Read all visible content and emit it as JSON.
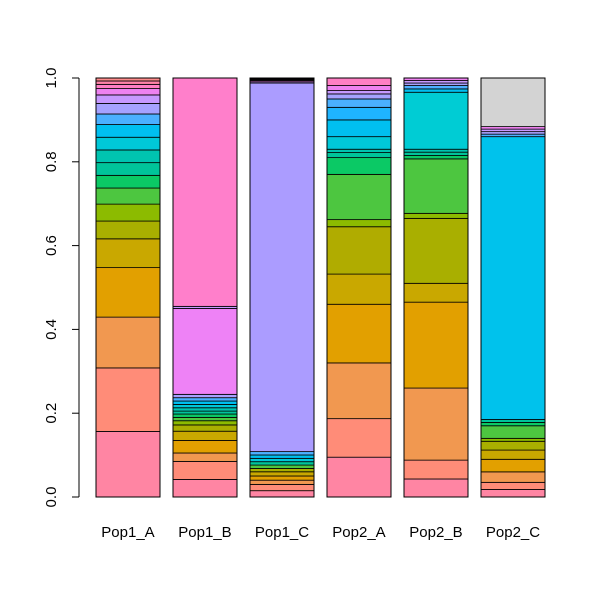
{
  "chart_data": {
    "type": "bar",
    "stacked": true,
    "categories": [
      "Pop1_A",
      "Pop1_B",
      "Pop1_C",
      "Pop2_A",
      "Pop2_B",
      "Pop2_C"
    ],
    "ylim": [
      0,
      1
    ],
    "yticks": [
      "0.0",
      "0.2",
      "0.4",
      "0.6",
      "0.8",
      "1.0"
    ],
    "ytick_values": [
      0,
      0.2,
      0.4,
      0.6,
      0.8,
      1.0
    ],
    "grid": false,
    "bars": [
      {
        "category": "Pop1_A",
        "segments": [
          {
            "value": 0.155,
            "color": "#FF85A3"
          },
          {
            "value": 0.15,
            "color": "#FF8C78"
          },
          {
            "value": 0.12,
            "color": "#F19850"
          },
          {
            "value": 0.117,
            "color": "#E2A000"
          },
          {
            "value": 0.068,
            "color": "#C9A800"
          },
          {
            "value": 0.042,
            "color": "#A9AF00"
          },
          {
            "value": 0.04,
            "color": "#8CBB00"
          },
          {
            "value": 0.038,
            "color": "#4DC640"
          },
          {
            "value": 0.03,
            "color": "#0BC965"
          },
          {
            "value": 0.03,
            "color": "#00C49A"
          },
          {
            "value": 0.03,
            "color": "#00C4B0"
          },
          {
            "value": 0.03,
            "color": "#00C8D8"
          },
          {
            "value": 0.03,
            "color": "#00BFF0"
          },
          {
            "value": 0.025,
            "color": "#4BB0FF"
          },
          {
            "value": 0.025,
            "color": "#A6A2FF"
          },
          {
            "value": 0.02,
            "color": "#C799FF"
          },
          {
            "value": 0.015,
            "color": "#EE82F0"
          },
          {
            "value": 0.01,
            "color": "#FF7FC4"
          },
          {
            "value": 0.008,
            "color": "#FF83A8"
          },
          {
            "value": 0.007,
            "color": "#FF8C8C"
          }
        ]
      },
      {
        "category": "Pop1_B",
        "segments": [
          {
            "value": 0.042,
            "color": "#FF85A3"
          },
          {
            "value": 0.043,
            "color": "#FF8C78"
          },
          {
            "value": 0.02,
            "color": "#F19850"
          },
          {
            "value": 0.03,
            "color": "#E2A000"
          },
          {
            "value": 0.022,
            "color": "#C9A800"
          },
          {
            "value": 0.015,
            "color": "#A9AF00"
          },
          {
            "value": 0.01,
            "color": "#8CBB00"
          },
          {
            "value": 0.008,
            "color": "#4DC640"
          },
          {
            "value": 0.008,
            "color": "#0BC965"
          },
          {
            "value": 0.007,
            "color": "#00C49A"
          },
          {
            "value": 0.008,
            "color": "#00C4B0"
          },
          {
            "value": 0.008,
            "color": "#00C8D8"
          },
          {
            "value": 0.008,
            "color": "#00BFF0"
          },
          {
            "value": 0.008,
            "color": "#4BB0FF"
          },
          {
            "value": 0.008,
            "color": "#A6A2FF"
          },
          {
            "value": 0.205,
            "color": "#EE82F6"
          },
          {
            "value": 0.005,
            "color": "#C799FF"
          },
          {
            "value": 0.545,
            "color": "#FF7FCB"
          }
        ]
      },
      {
        "category": "Pop1_C",
        "segments": [
          {
            "value": 0.015,
            "color": "#FF85A3"
          },
          {
            "value": 0.015,
            "color": "#FF8C78"
          },
          {
            "value": 0.01,
            "color": "#F19850"
          },
          {
            "value": 0.01,
            "color": "#E2A000"
          },
          {
            "value": 0.01,
            "color": "#C9A800"
          },
          {
            "value": 0.008,
            "color": "#A9AF00"
          },
          {
            "value": 0.008,
            "color": "#4DC640"
          },
          {
            "value": 0.008,
            "color": "#00C49A"
          },
          {
            "value": 0.008,
            "color": "#00C8D8"
          },
          {
            "value": 0.008,
            "color": "#00BFF0"
          },
          {
            "value": 0.008,
            "color": "#4BB0FF"
          },
          {
            "value": 0.877,
            "color": "#AB9CFF"
          },
          {
            "value": 0.003,
            "color": "#C799FF"
          },
          {
            "value": 0.003,
            "color": "#EE82F0"
          },
          {
            "value": 0.002,
            "color": "#FF7FC4"
          },
          {
            "value": 0.002,
            "color": "#FF83A8"
          },
          {
            "value": 0.002,
            "color": "#FF8C8C"
          }
        ]
      },
      {
        "category": "Pop2_A",
        "segments": [
          {
            "value": 0.095,
            "color": "#FF85A3"
          },
          {
            "value": 0.092,
            "color": "#FF8C78"
          },
          {
            "value": 0.133,
            "color": "#F19850"
          },
          {
            "value": 0.14,
            "color": "#E2A000"
          },
          {
            "value": 0.072,
            "color": "#C9A800"
          },
          {
            "value": 0.113,
            "color": "#B0AC00"
          },
          {
            "value": 0.017,
            "color": "#8CBB00"
          },
          {
            "value": 0.108,
            "color": "#4DC640"
          },
          {
            "value": 0.04,
            "color": "#0BC965"
          },
          {
            "value": 0.012,
            "color": "#00C49A"
          },
          {
            "value": 0.008,
            "color": "#00C4B0"
          },
          {
            "value": 0.03,
            "color": "#00C8D8"
          },
          {
            "value": 0.04,
            "color": "#00BFF0"
          },
          {
            "value": 0.03,
            "color": "#1FB4FF"
          },
          {
            "value": 0.02,
            "color": "#4BB0FF"
          },
          {
            "value": 0.012,
            "color": "#A6A2FF"
          },
          {
            "value": 0.008,
            "color": "#C799FF"
          },
          {
            "value": 0.012,
            "color": "#EE82F0"
          },
          {
            "value": 0.018,
            "color": "#FF7FC4"
          }
        ]
      },
      {
        "category": "Pop2_B",
        "segments": [
          {
            "value": 0.043,
            "color": "#FF85A3"
          },
          {
            "value": 0.045,
            "color": "#FF8C78"
          },
          {
            "value": 0.172,
            "color": "#F19850"
          },
          {
            "value": 0.205,
            "color": "#E2A000"
          },
          {
            "value": 0.045,
            "color": "#C9A800"
          },
          {
            "value": 0.155,
            "color": "#A9AF00"
          },
          {
            "value": 0.012,
            "color": "#8CBB00"
          },
          {
            "value": 0.13,
            "color": "#4DC640"
          },
          {
            "value": 0.008,
            "color": "#0BC965"
          },
          {
            "value": 0.008,
            "color": "#00C49A"
          },
          {
            "value": 0.007,
            "color": "#00C4B0"
          },
          {
            "value": 0.136,
            "color": "#00CCD4"
          },
          {
            "value": 0.008,
            "color": "#00BFF0"
          },
          {
            "value": 0.008,
            "color": "#4BB0FF"
          },
          {
            "value": 0.006,
            "color": "#A6A2FF"
          },
          {
            "value": 0.006,
            "color": "#C799FF"
          },
          {
            "value": 0.006,
            "color": "#EE82F0"
          }
        ]
      },
      {
        "category": "Pop2_C",
        "segments": [
          {
            "value": 0.018,
            "color": "#FF85A3"
          },
          {
            "value": 0.017,
            "color": "#FF8C78"
          },
          {
            "value": 0.025,
            "color": "#F19850"
          },
          {
            "value": 0.03,
            "color": "#E2A000"
          },
          {
            "value": 0.022,
            "color": "#C9A800"
          },
          {
            "value": 0.021,
            "color": "#A9AF00"
          },
          {
            "value": 0.007,
            "color": "#8CBB00"
          },
          {
            "value": 0.03,
            "color": "#4DC640"
          },
          {
            "value": 0.008,
            "color": "#0BC965"
          },
          {
            "value": 0.007,
            "color": "#00C49A"
          },
          {
            "value": 0.675,
            "color": "#00C2EC"
          },
          {
            "value": 0.006,
            "color": "#4BB0FF"
          },
          {
            "value": 0.006,
            "color": "#A6A2FF"
          },
          {
            "value": 0.006,
            "color": "#C799FF"
          },
          {
            "value": 0.006,
            "color": "#EE82F0"
          },
          {
            "value": 0.116,
            "color": "#D3D3D3"
          }
        ]
      }
    ]
  }
}
